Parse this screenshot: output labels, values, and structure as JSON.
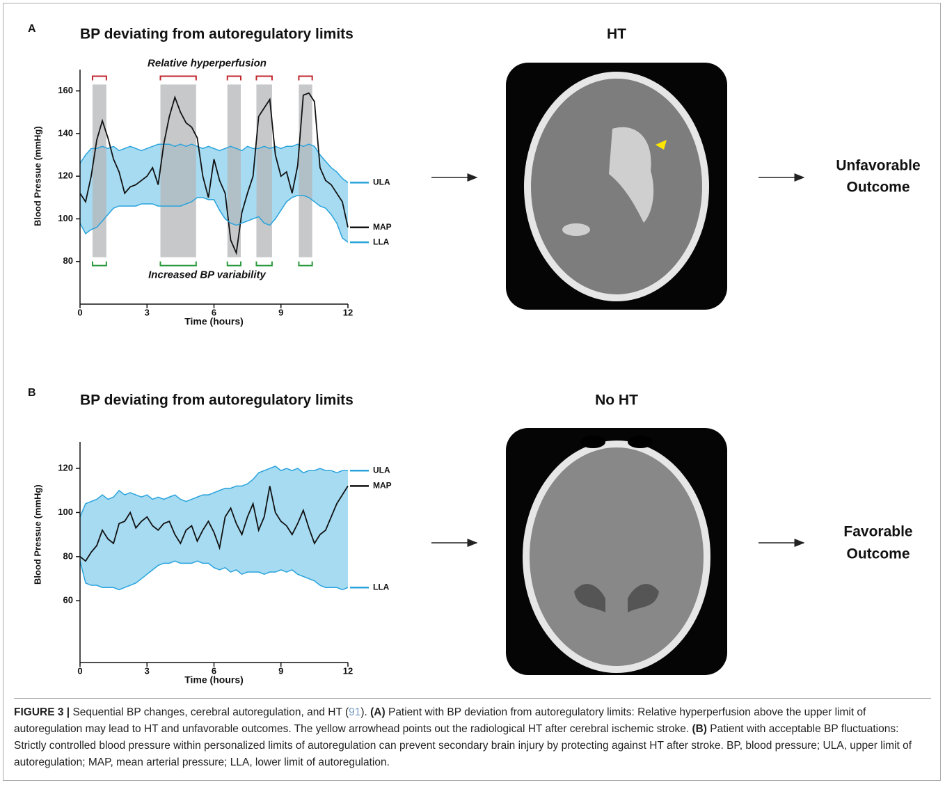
{
  "chart_data": [
    {
      "type": "line",
      "panel": "A",
      "title": "BP deviating from autoregulatory limits",
      "xlabel": "Time (hours)",
      "ylabel": "Blood Pressue (mmHg)",
      "x": [
        0,
        0.25,
        0.5,
        0.75,
        1,
        1.25,
        1.5,
        1.75,
        2,
        2.25,
        2.5,
        2.75,
        3,
        3.25,
        3.5,
        3.75,
        4,
        4.25,
        4.5,
        4.75,
        5,
        5.25,
        5.5,
        5.75,
        6,
        6.25,
        6.5,
        6.75,
        7,
        7.25,
        7.5,
        7.75,
        8,
        8.25,
        8.5,
        8.75,
        9,
        9.25,
        9.5,
        9.75,
        10,
        10.25,
        10.5,
        10.75,
        11,
        11.25,
        11.5,
        11.75,
        12
      ],
      "xlim": [
        0,
        12
      ],
      "xticks": [
        0,
        3,
        6,
        9,
        12
      ],
      "ylim": [
        60,
        170
      ],
      "yticks": [
        80,
        100,
        120,
        140,
        160
      ],
      "band_color": "#a6dbf2",
      "series": [
        {
          "name": "ULA",
          "color": "#29a3dc",
          "values": [
            126,
            130,
            133,
            133,
            134,
            133,
            134,
            132,
            133,
            134,
            133,
            132,
            133,
            134,
            135,
            135,
            135,
            134,
            135,
            134,
            135,
            134,
            133,
            134,
            133,
            132,
            133,
            134,
            133,
            132,
            134,
            133,
            133,
            134,
            133,
            134,
            133,
            134,
            134,
            135,
            134,
            135,
            134,
            130,
            127,
            124,
            122,
            119,
            117
          ]
        },
        {
          "name": "MAP",
          "color": "#111111",
          "values": [
            112,
            108,
            120,
            137,
            146,
            138,
            128,
            122,
            112,
            115,
            116,
            118,
            120,
            124,
            116,
            135,
            148,
            157,
            150,
            145,
            143,
            138,
            120,
            110,
            128,
            118,
            112,
            90,
            84,
            103,
            112,
            120,
            148,
            152,
            156,
            130,
            120,
            122,
            112,
            125,
            158,
            159,
            155,
            124,
            118,
            116,
            112,
            108,
            96
          ]
        },
        {
          "name": "LLA",
          "color": "#29a3dc",
          "values": [
            98,
            93,
            95,
            96,
            99,
            102,
            105,
            106,
            106,
            106,
            106,
            107,
            107,
            107,
            106,
            106,
            106,
            106,
            106,
            107,
            108,
            110,
            110,
            109,
            109,
            104,
            100,
            98,
            97,
            98,
            99,
            100,
            101,
            98,
            97,
            100,
            104,
            108,
            110,
            111,
            111,
            110,
            108,
            106,
            105,
            102,
            98,
            91,
            89
          ]
        }
      ],
      "shaded_intervals": [
        [
          0.56,
          1.18
        ],
        [
          3.6,
          5.2
        ],
        [
          6.6,
          7.2
        ],
        [
          7.9,
          8.6
        ],
        [
          9.8,
          10.4
        ]
      ],
      "shade_range": [
        82,
        163
      ],
      "shade_color": "#b4b5b8",
      "annotations": [
        {
          "text": "Relative hyperperfusion",
          "color": "#c0272d"
        },
        {
          "text": "Increased BP variability",
          "color": "#2a9a3e"
        }
      ]
    },
    {
      "type": "line",
      "panel": "B",
      "title": "BP deviating from autoregulatory limits",
      "xlabel": "Time (hours)",
      "ylabel": "Blood Pressue (mmHg)",
      "x": [
        0,
        0.25,
        0.5,
        0.75,
        1,
        1.25,
        1.5,
        1.75,
        2,
        2.25,
        2.5,
        2.75,
        3,
        3.25,
        3.5,
        3.75,
        4,
        4.25,
        4.5,
        4.75,
        5,
        5.25,
        5.5,
        5.75,
        6,
        6.25,
        6.5,
        6.75,
        7,
        7.25,
        7.5,
        7.75,
        8,
        8.25,
        8.5,
        8.75,
        9,
        9.25,
        9.5,
        9.75,
        10,
        10.25,
        10.5,
        10.75,
        11,
        11.25,
        11.5,
        11.75,
        12
      ],
      "xlim": [
        0,
        12
      ],
      "xticks": [
        0,
        3,
        6,
        9,
        12
      ],
      "ylim": [
        32,
        132
      ],
      "yticks": [
        60,
        80,
        100,
        120
      ],
      "band_color": "#a6dbf2",
      "series": [
        {
          "name": "ULA",
          "color": "#29a3dc",
          "values": [
            98,
            104,
            105,
            106,
            108,
            106,
            107,
            110,
            108,
            109,
            108,
            107,
            108,
            106,
            107,
            106,
            107,
            108,
            106,
            105,
            106,
            107,
            108,
            108,
            109,
            110,
            111,
            111,
            112,
            112,
            113,
            115,
            118,
            119,
            120,
            121,
            119,
            120,
            119,
            120,
            118,
            119,
            119,
            120,
            119,
            119,
            118,
            119,
            119
          ]
        },
        {
          "name": "MAP",
          "color": "#111111",
          "values": [
            80,
            78,
            82,
            85,
            92,
            88,
            86,
            95,
            96,
            100,
            93,
            96,
            98,
            94,
            92,
            95,
            96,
            90,
            86,
            92,
            94,
            87,
            92,
            96,
            91,
            84,
            98,
            102,
            95,
            90,
            98,
            104,
            92,
            98,
            112,
            100,
            96,
            94,
            90,
            95,
            101,
            93,
            86,
            90,
            92,
            98,
            104,
            108,
            112
          ]
        },
        {
          "name": "LLA",
          "color": "#29a3dc",
          "values": [
            78,
            68,
            67,
            67,
            66,
            66,
            66,
            65,
            66,
            67,
            68,
            70,
            72,
            74,
            76,
            77,
            77,
            78,
            77,
            77,
            77,
            78,
            77,
            77,
            75,
            74,
            75,
            73,
            74,
            72,
            73,
            73,
            73,
            72,
            73,
            73,
            74,
            73,
            74,
            72,
            71,
            70,
            69,
            67,
            66,
            66,
            66,
            65,
            66
          ]
        }
      ]
    }
  ],
  "images": [
    {
      "title": "HT",
      "outcome": [
        "Unfavorable",
        "Outcome"
      ]
    },
    {
      "title": "No HT",
      "outcome": [
        "Favorable",
        "Outcome"
      ]
    }
  ],
  "caption": {
    "label": "FIGURE 3 |",
    "text": " Sequential BP changes, cerebral autoregulation, and HT (",
    "ref": "91",
    "after": "). ",
    "a": "(A)",
    "a_text": " Patient with BP deviation from autoregulatory limits: Relative hyperperfusion above the upper limit of autoregulation may lead to HT and unfavorable outcomes. The yellow arrowhead points out the radiological HT after cerebral ischemic stroke. ",
    "b": "(B)",
    "b_text": " Patient with acceptable BP fluctuations: Strictly controlled blood pressure within personalized limits of autoregulation can prevent secondary brain injury by protecting against HT after stroke. BP, blood pressure; ULA, upper limit of autoregulation; MAP, mean arterial pressure; LLA, lower limit of autoregulation."
  }
}
